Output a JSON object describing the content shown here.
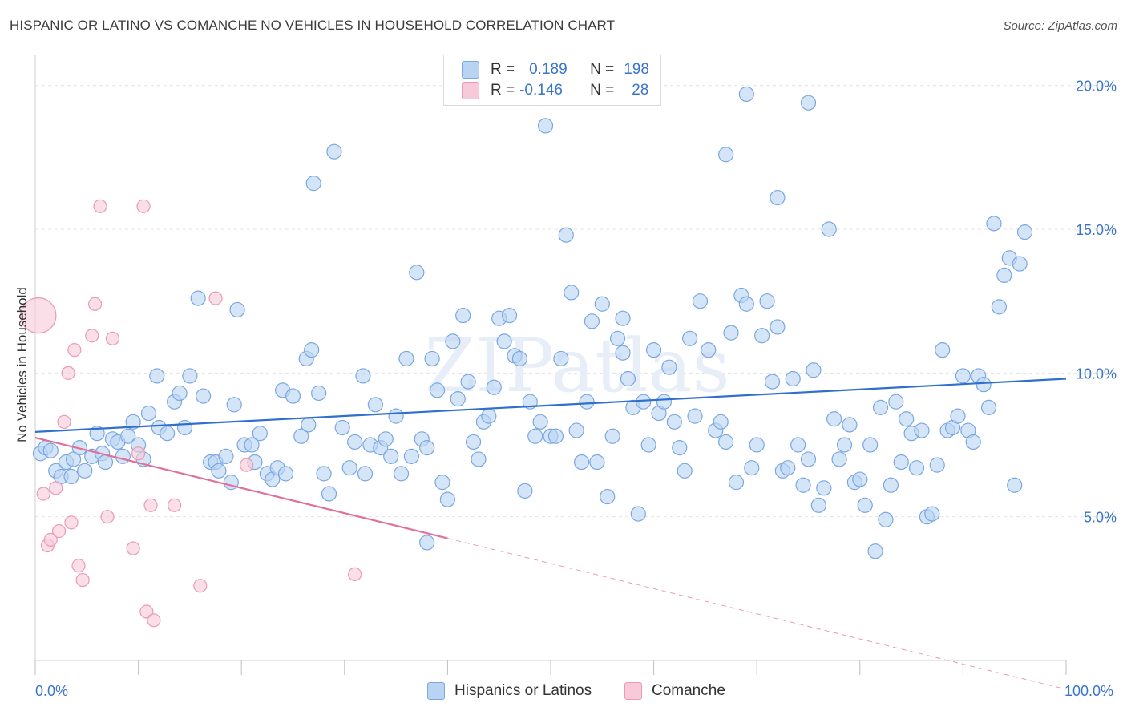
{
  "title": "HISPANIC OR LATINO VS COMANCHE NO VEHICLES IN HOUSEHOLD CORRELATION CHART",
  "source": "Source: ZipAtlas.com",
  "legend_top": {
    "rows": [
      {
        "r_label": "R =",
        "r_value": "0.189",
        "n_label": "N =",
        "n_value": "198",
        "color": "#aecbf0"
      },
      {
        "r_label": "R =",
        "r_value": "-0.146",
        "n_label": "N =",
        "n_value": "28",
        "color": "#f5bfd0"
      }
    ]
  },
  "watermark": "ZIPatlas",
  "colors": {
    "blue_fill": "#b9d3f3",
    "blue_stroke": "#7aa7e0",
    "blue_line": "#2f6fcd",
    "pink_fill": "#f8c9d8",
    "pink_stroke": "#ea9ab4",
    "pink_line": "#e0709a",
    "tick_text": "#3a74c9",
    "grid": "#e3e3e3"
  },
  "chart_data": {
    "type": "scatter",
    "title": "HISPANIC OR LATINO VS COMANCHE NO VEHICLES IN HOUSEHOLD CORRELATION CHART",
    "xlabel": "",
    "ylabel": "No Vehicles in Household",
    "xlim": [
      0,
      100
    ],
    "ylim": [
      0,
      20.8
    ],
    "x_tick_labels": [
      "0.0%",
      "100.0%"
    ],
    "y_ticks": [
      5,
      10,
      15,
      20
    ],
    "y_tick_labels": [
      "5.0%",
      "10.0%",
      "15.0%",
      "20.0%"
    ],
    "grid": true,
    "legend_position": "bottom",
    "series": [
      {
        "name": "Hispanics or Latinos",
        "color": "#b9d3f3",
        "trend": {
          "x": [
            0,
            100
          ],
          "y": [
            7.95,
            9.8
          ]
        },
        "points": [
          [
            0.5,
            7.2
          ],
          [
            1,
            7.4
          ],
          [
            1.5,
            7.3
          ],
          [
            2,
            6.6
          ],
          [
            2.5,
            6.4
          ],
          [
            3,
            6.9
          ],
          [
            3.5,
            6.4
          ],
          [
            3.7,
            7.0
          ],
          [
            4.3,
            7.4
          ],
          [
            4.8,
            6.6
          ],
          [
            5.5,
            7.1
          ],
          [
            6,
            7.9
          ],
          [
            6.5,
            7.2
          ],
          [
            6.8,
            6.9
          ],
          [
            7.5,
            7.7
          ],
          [
            8,
            7.6
          ],
          [
            8.5,
            7.1
          ],
          [
            9,
            7.8
          ],
          [
            9.5,
            8.3
          ],
          [
            10,
            7.5
          ],
          [
            10.5,
            7.0
          ],
          [
            11,
            8.6
          ],
          [
            11.8,
            9.9
          ],
          [
            12,
            8.1
          ],
          [
            12.8,
            7.9
          ],
          [
            13.5,
            9.0
          ],
          [
            14,
            9.3
          ],
          [
            14.5,
            8.1
          ],
          [
            15,
            9.9
          ],
          [
            15.8,
            12.6
          ],
          [
            16.3,
            9.2
          ],
          [
            17,
            6.9
          ],
          [
            17.5,
            6.9
          ],
          [
            17.8,
            6.6
          ],
          [
            18.5,
            7.1
          ],
          [
            19,
            6.2
          ],
          [
            19.3,
            8.9
          ],
          [
            19.6,
            12.2
          ],
          [
            20.3,
            7.5
          ],
          [
            21,
            7.5
          ],
          [
            21.3,
            6.9
          ],
          [
            21.8,
            7.9
          ],
          [
            22.5,
            6.5
          ],
          [
            23,
            6.3
          ],
          [
            23.5,
            6.7
          ],
          [
            24,
            9.4
          ],
          [
            24.3,
            6.5
          ],
          [
            25,
            9.2
          ],
          [
            25.8,
            7.8
          ],
          [
            26.3,
            10.5
          ],
          [
            26.5,
            8.2
          ],
          [
            26.8,
            10.8
          ],
          [
            27.5,
            9.3
          ],
          [
            28,
            6.5
          ],
          [
            28.5,
            5.8
          ],
          [
            29,
            17.7
          ],
          [
            29.8,
            8.1
          ],
          [
            30.5,
            6.7
          ],
          [
            31,
            7.6
          ],
          [
            31.8,
            9.9
          ],
          [
            32,
            6.5
          ],
          [
            32.5,
            7.5
          ],
          [
            33,
            8.9
          ],
          [
            33.5,
            7.4
          ],
          [
            34,
            7.7
          ],
          [
            34.5,
            7.1
          ],
          [
            35,
            8.5
          ],
          [
            35.5,
            6.5
          ],
          [
            36,
            10.5
          ],
          [
            36.5,
            7.1
          ],
          [
            37,
            13.5
          ],
          [
            37.5,
            7.7
          ],
          [
            38,
            7.4
          ],
          [
            38.5,
            10.5
          ],
          [
            39,
            9.4
          ],
          [
            39.5,
            6.2
          ],
          [
            40,
            5.6
          ],
          [
            40.5,
            11.1
          ],
          [
            41,
            9.1
          ],
          [
            41.5,
            12.0
          ],
          [
            42,
            9.7
          ],
          [
            42.5,
            7.6
          ],
          [
            43,
            7.0
          ],
          [
            43.5,
            8.3
          ],
          [
            44,
            8.5
          ],
          [
            44.5,
            9.5
          ],
          [
            45,
            11.9
          ],
          [
            45.5,
            11.1
          ],
          [
            46,
            12.0
          ],
          [
            46.5,
            10.6
          ],
          [
            47,
            10.5
          ],
          [
            47.5,
            5.9
          ],
          [
            48,
            9.0
          ],
          [
            48.5,
            7.8
          ],
          [
            49,
            8.3
          ],
          [
            49.5,
            18.6
          ],
          [
            50,
            7.8
          ],
          [
            50.5,
            7.8
          ],
          [
            51,
            10.5
          ],
          [
            51.5,
            14.8
          ],
          [
            52,
            12.8
          ],
          [
            52.5,
            8.0
          ],
          [
            53,
            6.9
          ],
          [
            53.5,
            9.0
          ],
          [
            54,
            11.8
          ],
          [
            54.5,
            6.9
          ],
          [
            55,
            12.4
          ],
          [
            55.5,
            5.7
          ],
          [
            56,
            7.8
          ],
          [
            56.5,
            11.2
          ],
          [
            57,
            10.7
          ],
          [
            57.5,
            9.8
          ],
          [
            58,
            8.8
          ],
          [
            58.5,
            5.1
          ],
          [
            59,
            9.0
          ],
          [
            59.5,
            7.5
          ],
          [
            60,
            10.8
          ],
          [
            60.5,
            8.6
          ],
          [
            61,
            9.0
          ],
          [
            61.5,
            10.2
          ],
          [
            62,
            8.3
          ],
          [
            62.5,
            7.4
          ],
          [
            63,
            6.6
          ],
          [
            63.5,
            11.2
          ],
          [
            64,
            8.5
          ],
          [
            64.5,
            12.5
          ],
          [
            65.3,
            10.8
          ],
          [
            66,
            8.0
          ],
          [
            66.5,
            8.3
          ],
          [
            67,
            7.6
          ],
          [
            67.5,
            11.4
          ],
          [
            68,
            6.2
          ],
          [
            68.5,
            12.7
          ],
          [
            69,
            12.4
          ],
          [
            69.5,
            6.7
          ],
          [
            70,
            7.5
          ],
          [
            70.5,
            11.3
          ],
          [
            71,
            12.5
          ],
          [
            71.5,
            9.7
          ],
          [
            72,
            11.6
          ],
          [
            72.5,
            6.6
          ],
          [
            73,
            6.7
          ],
          [
            73.5,
            9.8
          ],
          [
            74,
            7.5
          ],
          [
            74.5,
            6.1
          ],
          [
            75,
            7.0
          ],
          [
            75.5,
            10.1
          ],
          [
            76,
            5.4
          ],
          [
            76.5,
            6.0
          ],
          [
            77,
            15.0
          ],
          [
            77.5,
            8.4
          ],
          [
            78,
            7.0
          ],
          [
            78.5,
            7.5
          ],
          [
            79,
            8.2
          ],
          [
            79.5,
            6.2
          ],
          [
            80,
            6.3
          ],
          [
            80.5,
            5.4
          ],
          [
            81,
            7.5
          ],
          [
            81.5,
            3.8
          ],
          [
            82,
            8.8
          ],
          [
            82.5,
            4.9
          ],
          [
            83,
            6.1
          ],
          [
            83.5,
            9.0
          ],
          [
            84,
            6.9
          ],
          [
            84.5,
            8.4
          ],
          [
            85,
            7.9
          ],
          [
            85.5,
            6.7
          ],
          [
            86,
            8.0
          ],
          [
            86.5,
            5.0
          ],
          [
            87,
            5.1
          ],
          [
            87.5,
            6.8
          ],
          [
            88,
            10.8
          ],
          [
            88.5,
            8.0
          ],
          [
            89,
            8.1
          ],
          [
            89.5,
            8.5
          ],
          [
            90,
            9.9
          ],
          [
            90.5,
            8.0
          ],
          [
            91,
            7.6
          ],
          [
            91.5,
            9.9
          ],
          [
            92,
            9.6
          ],
          [
            92.5,
            8.8
          ],
          [
            93,
            15.2
          ],
          [
            93.5,
            12.3
          ],
          [
            94,
            13.4
          ],
          [
            94.5,
            14.0
          ],
          [
            95,
            6.1
          ],
          [
            95.5,
            13.8
          ],
          [
            96,
            14.9
          ],
          [
            57,
            11.9
          ],
          [
            72,
            16.1
          ],
          [
            75,
            19.4
          ],
          [
            67,
            17.6
          ],
          [
            69,
            19.7
          ],
          [
            38,
            4.1
          ],
          [
            27,
            16.6
          ]
        ]
      },
      {
        "name": "Comanche",
        "color": "#f8c9d8",
        "trend": {
          "x": [
            0,
            40
          ],
          "y": [
            7.75,
            4.25
          ]
        },
        "trend_dashed": {
          "x": [
            40,
            100
          ],
          "y": [
            4.25,
            -1.0
          ]
        },
        "points": [
          [
            0.3,
            12.0
          ],
          [
            0.8,
            5.8
          ],
          [
            1.2,
            4.0
          ],
          [
            1.5,
            4.2
          ],
          [
            2,
            6.0
          ],
          [
            2.3,
            4.5
          ],
          [
            2.8,
            8.3
          ],
          [
            3.2,
            10.0
          ],
          [
            3.5,
            4.8
          ],
          [
            3.8,
            10.8
          ],
          [
            4.2,
            3.3
          ],
          [
            4.6,
            2.8
          ],
          [
            5.5,
            11.3
          ],
          [
            5.8,
            12.4
          ],
          [
            6.3,
            15.8
          ],
          [
            7,
            5.0
          ],
          [
            7.5,
            11.2
          ],
          [
            9.5,
            3.9
          ],
          [
            10,
            7.2
          ],
          [
            10.5,
            15.8
          ],
          [
            10.8,
            1.7
          ],
          [
            11.2,
            5.4
          ],
          [
            11.5,
            1.4
          ],
          [
            13.5,
            5.4
          ],
          [
            16,
            2.6
          ],
          [
            17.5,
            12.6
          ],
          [
            20.5,
            6.8
          ],
          [
            31,
            3.0
          ]
        ]
      }
    ]
  },
  "bottom_legend": [
    {
      "label": "Hispanics or Latinos",
      "color": "#b9d3f3"
    },
    {
      "label": "Comanche",
      "color": "#f8c9d8"
    }
  ]
}
